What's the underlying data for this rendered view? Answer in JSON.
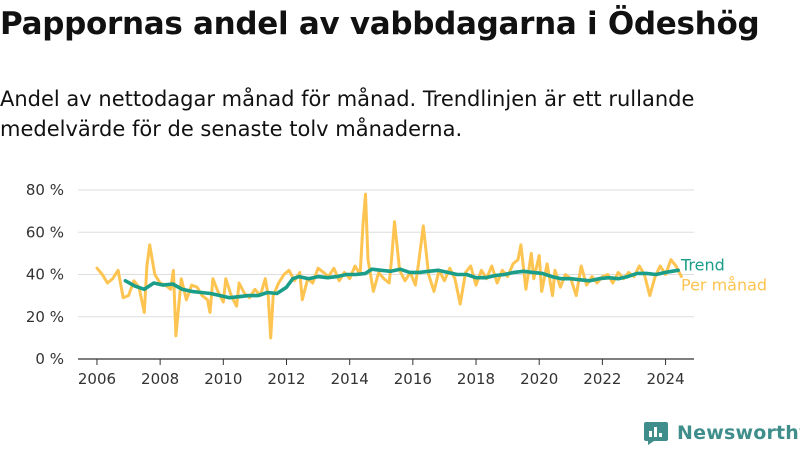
{
  "title": "Pappornas andel av vabbdagarna i Ödeshög",
  "subtitle": "Andel av nettodagar månad för månad. Trendlinjen är ett rullande medelvärde för de senaste tolv månaderna.",
  "brand": {
    "name": "Newsworthy",
    "color": "#3f8e8b",
    "icon": "newsworthy-logo-icon"
  },
  "chart_data": {
    "type": "line",
    "x_unit": "decimal-year",
    "y_unit": "%",
    "xlim": [
      2005.4,
      2024.9
    ],
    "ylim": [
      0,
      80
    ],
    "yticks": [
      0,
      20,
      40,
      60,
      80
    ],
    "ytick_labels": [
      "0 %",
      "20 %",
      "40 %",
      "60 %",
      "80 %"
    ],
    "xticks": [
      2006,
      2008,
      2010,
      2012,
      2014,
      2016,
      2018,
      2020,
      2022,
      2024
    ],
    "xtick_labels": [
      "2006",
      "2008",
      "2010",
      "2012",
      "2014",
      "2016",
      "2018",
      "2020",
      "2022",
      "2024"
    ],
    "grid": "horizontal",
    "series": [
      {
        "name": "Per månad",
        "color": "#fdc451",
        "points": [
          [
            2006.0,
            43
          ],
          [
            2006.17,
            40
          ],
          [
            2006.33,
            36
          ],
          [
            2006.5,
            38
          ],
          [
            2006.67,
            42
          ],
          [
            2006.83,
            29
          ],
          [
            2007.0,
            30
          ],
          [
            2007.17,
            37
          ],
          [
            2007.33,
            34
          ],
          [
            2007.5,
            22
          ],
          [
            2007.58,
            44
          ],
          [
            2007.67,
            54
          ],
          [
            2007.83,
            40
          ],
          [
            2008.0,
            36
          ],
          [
            2008.17,
            35
          ],
          [
            2008.33,
            33
          ],
          [
            2008.42,
            42
          ],
          [
            2008.5,
            11
          ],
          [
            2008.67,
            38
          ],
          [
            2008.83,
            28
          ],
          [
            2009.0,
            35
          ],
          [
            2009.17,
            34
          ],
          [
            2009.33,
            30
          ],
          [
            2009.5,
            28
          ],
          [
            2009.58,
            22
          ],
          [
            2009.67,
            38
          ],
          [
            2009.83,
            32
          ],
          [
            2010.0,
            27
          ],
          [
            2010.08,
            38
          ],
          [
            2010.25,
            30
          ],
          [
            2010.42,
            25
          ],
          [
            2010.5,
            36
          ],
          [
            2010.67,
            31
          ],
          [
            2010.83,
            29
          ],
          [
            2011.0,
            33
          ],
          [
            2011.17,
            30
          ],
          [
            2011.33,
            38
          ],
          [
            2011.42,
            30
          ],
          [
            2011.5,
            10
          ],
          [
            2011.58,
            30
          ],
          [
            2011.75,
            36
          ],
          [
            2011.92,
            40
          ],
          [
            2012.08,
            42
          ],
          [
            2012.25,
            37
          ],
          [
            2012.42,
            41
          ],
          [
            2012.5,
            28
          ],
          [
            2012.67,
            38
          ],
          [
            2012.83,
            36
          ],
          [
            2013.0,
            43
          ],
          [
            2013.17,
            41
          ],
          [
            2013.33,
            39
          ],
          [
            2013.5,
            43
          ],
          [
            2013.67,
            37
          ],
          [
            2013.83,
            41
          ],
          [
            2014.0,
            38
          ],
          [
            2014.17,
            44
          ],
          [
            2014.33,
            40
          ],
          [
            2014.42,
            63
          ],
          [
            2014.5,
            78
          ],
          [
            2014.58,
            47
          ],
          [
            2014.75,
            32
          ],
          [
            2014.92,
            41
          ],
          [
            2015.08,
            38
          ],
          [
            2015.25,
            36
          ],
          [
            2015.33,
            48
          ],
          [
            2015.42,
            65
          ],
          [
            2015.58,
            42
          ],
          [
            2015.75,
            37
          ],
          [
            2015.92,
            41
          ],
          [
            2016.08,
            35
          ],
          [
            2016.17,
            44
          ],
          [
            2016.33,
            63
          ],
          [
            2016.5,
            40
          ],
          [
            2016.67,
            32
          ],
          [
            2016.83,
            42
          ],
          [
            2017.0,
            37
          ],
          [
            2017.17,
            43
          ],
          [
            2017.33,
            38
          ],
          [
            2017.5,
            26
          ],
          [
            2017.67,
            41
          ],
          [
            2017.83,
            44
          ],
          [
            2018.0,
            35
          ],
          [
            2018.17,
            42
          ],
          [
            2018.33,
            38
          ],
          [
            2018.5,
            44
          ],
          [
            2018.67,
            36
          ],
          [
            2018.83,
            42
          ],
          [
            2019.0,
            39
          ],
          [
            2019.17,
            45
          ],
          [
            2019.33,
            47
          ],
          [
            2019.42,
            54
          ],
          [
            2019.58,
            33
          ],
          [
            2019.75,
            50
          ],
          [
            2019.83,
            38
          ],
          [
            2020.0,
            49
          ],
          [
            2020.08,
            32
          ],
          [
            2020.25,
            45
          ],
          [
            2020.42,
            30
          ],
          [
            2020.5,
            42
          ],
          [
            2020.67,
            34
          ],
          [
            2020.83,
            40
          ],
          [
            2021.0,
            38
          ],
          [
            2021.17,
            30
          ],
          [
            2021.33,
            44
          ],
          [
            2021.5,
            35
          ],
          [
            2021.67,
            39
          ],
          [
            2021.83,
            36
          ],
          [
            2022.0,
            39
          ],
          [
            2022.17,
            40
          ],
          [
            2022.33,
            36
          ],
          [
            2022.5,
            41
          ],
          [
            2022.67,
            38
          ],
          [
            2022.83,
            41
          ],
          [
            2023.0,
            39
          ],
          [
            2023.17,
            44
          ],
          [
            2023.33,
            40
          ],
          [
            2023.5,
            30
          ],
          [
            2023.67,
            39
          ],
          [
            2023.83,
            44
          ],
          [
            2024.0,
            40
          ],
          [
            2024.17,
            47
          ],
          [
            2024.33,
            44
          ],
          [
            2024.5,
            39
          ]
        ]
      },
      {
        "name": "Trend",
        "color": "#1a9e8a",
        "points": [
          [
            2006.9,
            37
          ],
          [
            2007.2,
            34.5
          ],
          [
            2007.5,
            33
          ],
          [
            2007.8,
            36
          ],
          [
            2008.1,
            35
          ],
          [
            2008.4,
            35.5
          ],
          [
            2008.7,
            33
          ],
          [
            2009.0,
            32
          ],
          [
            2009.3,
            31.5
          ],
          [
            2009.6,
            31
          ],
          [
            2009.9,
            30
          ],
          [
            2010.2,
            29
          ],
          [
            2010.5,
            29.5
          ],
          [
            2010.8,
            30
          ],
          [
            2011.1,
            30
          ],
          [
            2011.4,
            31.5
          ],
          [
            2011.7,
            31
          ],
          [
            2012.0,
            34
          ],
          [
            2012.2,
            38
          ],
          [
            2012.4,
            39
          ],
          [
            2012.7,
            38
          ],
          [
            2013.0,
            39
          ],
          [
            2013.3,
            38.5
          ],
          [
            2013.6,
            39
          ],
          [
            2013.9,
            40
          ],
          [
            2014.2,
            40
          ],
          [
            2014.5,
            40.5
          ],
          [
            2014.7,
            42.5
          ],
          [
            2015.0,
            42
          ],
          [
            2015.3,
            41.5
          ],
          [
            2015.6,
            42.5
          ],
          [
            2015.9,
            41
          ],
          [
            2016.2,
            41
          ],
          [
            2016.5,
            41.5
          ],
          [
            2016.8,
            42
          ],
          [
            2017.1,
            41
          ],
          [
            2017.4,
            40
          ],
          [
            2017.7,
            40
          ],
          [
            2018.0,
            38.5
          ],
          [
            2018.3,
            38.5
          ],
          [
            2018.6,
            39.5
          ],
          [
            2018.9,
            40
          ],
          [
            2019.2,
            41
          ],
          [
            2019.5,
            41.5
          ],
          [
            2019.8,
            41
          ],
          [
            2020.1,
            40.5
          ],
          [
            2020.4,
            39
          ],
          [
            2020.7,
            38
          ],
          [
            2021.0,
            38
          ],
          [
            2021.3,
            37.5
          ],
          [
            2021.6,
            37
          ],
          [
            2021.9,
            38
          ],
          [
            2022.2,
            38.5
          ],
          [
            2022.5,
            38
          ],
          [
            2022.8,
            39
          ],
          [
            2023.1,
            40.5
          ],
          [
            2023.4,
            40.5
          ],
          [
            2023.7,
            40
          ],
          [
            2024.0,
            41
          ],
          [
            2024.2,
            41.5
          ],
          [
            2024.4,
            42
          ]
        ]
      }
    ]
  }
}
